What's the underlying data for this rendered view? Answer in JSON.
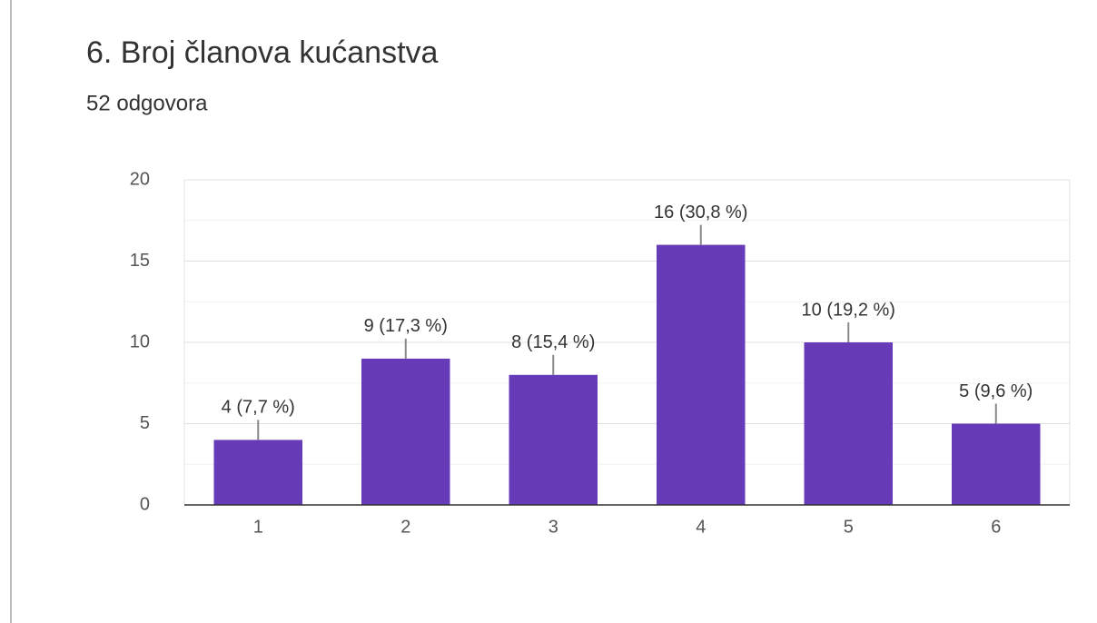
{
  "chart_data": {
    "type": "bar",
    "title": "6. Broj članova kućanstva",
    "subtitle": "52 odgovora",
    "categories": [
      "1",
      "2",
      "3",
      "4",
      "5",
      "6"
    ],
    "values": [
      4,
      9,
      8,
      16,
      10,
      5
    ],
    "value_labels": [
      "4 (7,7 %)",
      "9 (17,3 %)",
      "8 (15,4 %)",
      "16 (30,8 %)",
      "10 (19,2 %)",
      "5 (9,6 %)"
    ],
    "color": "#673ab7",
    "ylim": [
      0,
      20
    ],
    "yticks": [
      0,
      5,
      10,
      15,
      20
    ],
    "minor_yticks": [
      2.5,
      7.5,
      12.5,
      17.5
    ],
    "grid": true
  }
}
